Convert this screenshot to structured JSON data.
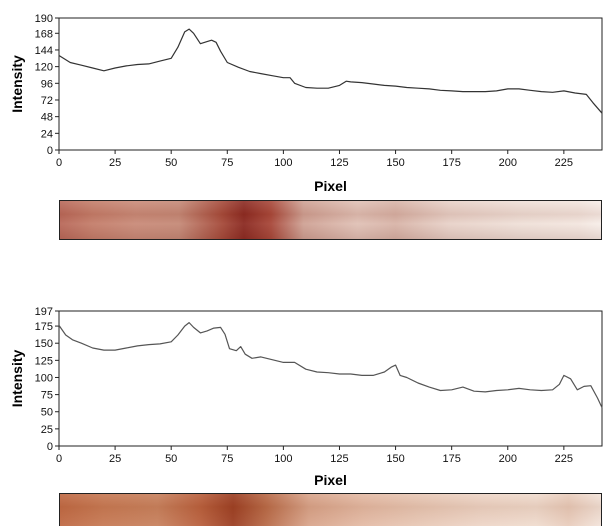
{
  "chart_data": [
    {
      "type": "line",
      "ylabel": "Intensity",
      "xlabel": "Pixel",
      "xlim": [
        0,
        242
      ],
      "ylim": [
        0,
        190
      ],
      "x_ticks": [
        0,
        25,
        50,
        75,
        100,
        125,
        150,
        175,
        200,
        225
      ],
      "y_ticks": [
        0,
        24,
        48,
        72,
        96,
        120,
        144,
        168,
        190
      ],
      "grid": false,
      "legend": "none",
      "line_color": "#333333",
      "x": [
        0,
        5,
        10,
        15,
        20,
        25,
        30,
        35,
        40,
        45,
        50,
        53,
        56,
        58,
        60,
        63,
        66,
        68,
        70,
        72,
        75,
        80,
        85,
        90,
        95,
        100,
        103,
        105,
        110,
        115,
        120,
        125,
        128,
        130,
        135,
        140,
        145,
        150,
        155,
        160,
        165,
        170,
        175,
        180,
        185,
        190,
        195,
        200,
        205,
        210,
        215,
        220,
        225,
        230,
        235,
        238,
        242
      ],
      "y": [
        136,
        126,
        122,
        118,
        114,
        118,
        121,
        123,
        124,
        128,
        132,
        148,
        170,
        174,
        168,
        153,
        156,
        158,
        155,
        142,
        126,
        119,
        113,
        110,
        107,
        104,
        104,
        96,
        90,
        89,
        89,
        93,
        99,
        98,
        97,
        95,
        93,
        92,
        90,
        89,
        88,
        86,
        85,
        84,
        84,
        84,
        85,
        88,
        88,
        86,
        84,
        83,
        85,
        82,
        80,
        68,
        53
      ]
    },
    {
      "type": "line",
      "ylabel": "Intensity",
      "xlabel": "Pixel",
      "xlim": [
        0,
        242
      ],
      "ylim": [
        0,
        197
      ],
      "x_ticks": [
        0,
        25,
        50,
        75,
        100,
        125,
        150,
        175,
        200,
        225
      ],
      "y_ticks": [
        0,
        25,
        50,
        75,
        100,
        125,
        150,
        175,
        197
      ],
      "grid": false,
      "legend": "none",
      "line_color": "#555555",
      "x": [
        0,
        3,
        6,
        10,
        15,
        20,
        25,
        30,
        35,
        40,
        45,
        50,
        53,
        56,
        58,
        60,
        63,
        66,
        69,
        72,
        74,
        76,
        79,
        81,
        83,
        86,
        90,
        95,
        100,
        105,
        110,
        115,
        120,
        125,
        130,
        135,
        140,
        145,
        148,
        150,
        152,
        155,
        160,
        165,
        170,
        175,
        180,
        185,
        190,
        195,
        200,
        205,
        210,
        215,
        220,
        223,
        225,
        228,
        231,
        234,
        237,
        240,
        242
      ],
      "y": [
        176,
        162,
        155,
        150,
        143,
        140,
        140,
        143,
        146,
        148,
        149,
        152,
        162,
        175,
        180,
        173,
        165,
        168,
        172,
        173,
        163,
        142,
        139,
        145,
        134,
        128,
        130,
        126,
        122,
        122,
        112,
        108,
        107,
        105,
        105,
        103,
        103,
        108,
        115,
        118,
        103,
        100,
        92,
        86,
        81,
        82,
        86,
        80,
        79,
        81,
        82,
        84,
        82,
        81,
        82,
        90,
        103,
        98,
        82,
        87,
        88,
        70,
        56
      ]
    }
  ]
}
